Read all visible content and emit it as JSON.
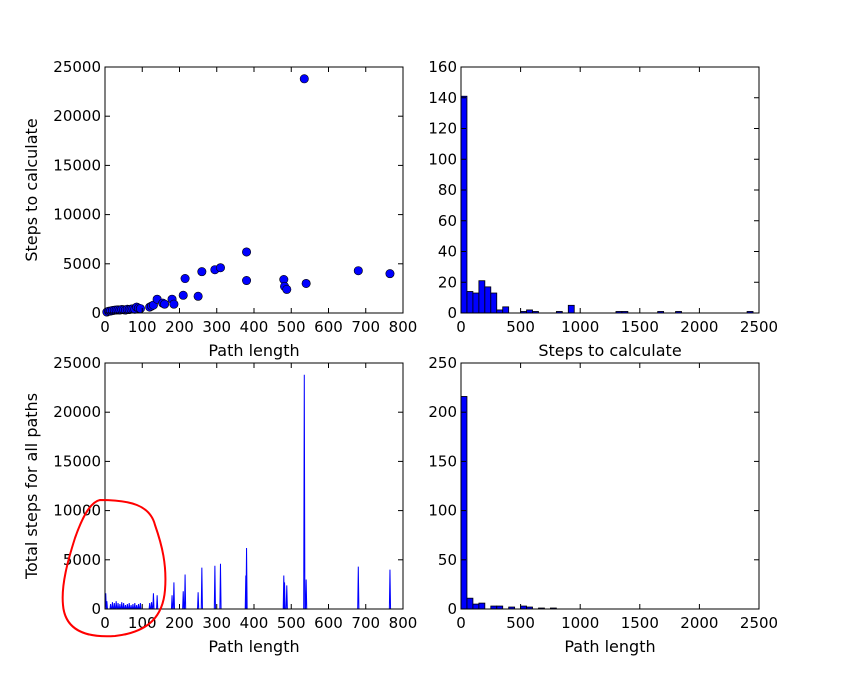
{
  "figure": {
    "background": "#ffffff",
    "mark_color": "#0000ff",
    "edge_color": "#000000",
    "annotation_color": "#ff0000"
  },
  "chart_data": [
    {
      "type": "scatter",
      "xlabel": "Path length",
      "ylabel": "Steps to calculate",
      "xlim": [
        0,
        800
      ],
      "ylim": [
        0,
        25000
      ],
      "xticks": [
        0,
        100,
        200,
        300,
        400,
        500,
        600,
        700,
        800
      ],
      "yticks": [
        0,
        5000,
        10000,
        15000,
        20000,
        25000
      ],
      "points": [
        [
          5,
          100
        ],
        [
          10,
          180
        ],
        [
          15,
          200
        ],
        [
          20,
          250
        ],
        [
          25,
          280
        ],
        [
          30,
          300
        ],
        [
          35,
          320
        ],
        [
          40,
          300
        ],
        [
          45,
          350
        ],
        [
          50,
          330
        ],
        [
          55,
          300
        ],
        [
          60,
          380
        ],
        [
          65,
          350
        ],
        [
          70,
          400
        ],
        [
          75,
          420
        ],
        [
          80,
          380
        ],
        [
          85,
          600
        ],
        [
          90,
          500
        ],
        [
          95,
          450
        ],
        [
          120,
          600
        ],
        [
          125,
          700
        ],
        [
          130,
          800
        ],
        [
          140,
          1400
        ],
        [
          155,
          1000
        ],
        [
          160,
          900
        ],
        [
          180,
          1400
        ],
        [
          185,
          900
        ],
        [
          210,
          1800
        ],
        [
          215,
          3500
        ],
        [
          250,
          1700
        ],
        [
          260,
          4200
        ],
        [
          295,
          4400
        ],
        [
          310,
          4600
        ],
        [
          380,
          6200
        ],
        [
          380,
          3300
        ],
        [
          480,
          3400
        ],
        [
          482,
          2700
        ],
        [
          488,
          2400
        ],
        [
          535,
          23800
        ],
        [
          540,
          3000
        ],
        [
          680,
          4300
        ],
        [
          765,
          4000
        ]
      ]
    },
    {
      "type": "bar",
      "xlabel": "Steps to calculate",
      "ylabel": "",
      "xlim": [
        0,
        2500
      ],
      "ylim": [
        0,
        160
      ],
      "xticks": [
        0,
        500,
        1000,
        1500,
        2000,
        2500
      ],
      "yticks": [
        0,
        20,
        40,
        60,
        80,
        100,
        120,
        140,
        160
      ],
      "bin_width": 50,
      "bins": [
        [
          0,
          141
        ],
        [
          50,
          14
        ],
        [
          100,
          13
        ],
        [
          150,
          21
        ],
        [
          200,
          17
        ],
        [
          250,
          13
        ],
        [
          300,
          2
        ],
        [
          350,
          4
        ],
        [
          500,
          1
        ],
        [
          550,
          2
        ],
        [
          600,
          1
        ],
        [
          800,
          1
        ],
        [
          900,
          5
        ],
        [
          1300,
          1
        ],
        [
          1350,
          1
        ],
        [
          1650,
          1
        ],
        [
          1800,
          1
        ],
        [
          2400,
          1
        ]
      ]
    },
    {
      "type": "line",
      "xlabel": "Path length",
      "ylabel": "Total steps for all paths",
      "xlim": [
        0,
        800
      ],
      "ylim": [
        0,
        25000
      ],
      "xticks": [
        0,
        100,
        200,
        300,
        400,
        500,
        600,
        700,
        800
      ],
      "yticks": [
        0,
        5000,
        10000,
        15000,
        20000,
        25000
      ],
      "spikes": [
        [
          2,
          1600
        ],
        [
          5,
          800
        ],
        [
          15,
          500
        ],
        [
          20,
          700
        ],
        [
          25,
          600
        ],
        [
          30,
          800
        ],
        [
          35,
          600
        ],
        [
          40,
          500
        ],
        [
          45,
          700
        ],
        [
          50,
          600
        ],
        [
          55,
          400
        ],
        [
          60,
          500
        ],
        [
          65,
          600
        ],
        [
          70,
          400
        ],
        [
          75,
          500
        ],
        [
          80,
          600
        ],
        [
          85,
          400
        ],
        [
          90,
          500
        ],
        [
          95,
          600
        ],
        [
          120,
          600
        ],
        [
          125,
          700
        ],
        [
          130,
          1600
        ],
        [
          140,
          1400
        ],
        [
          180,
          1400
        ],
        [
          185,
          2700
        ],
        [
          210,
          1800
        ],
        [
          215,
          3500
        ],
        [
          250,
          1700
        ],
        [
          260,
          4200
        ],
        [
          295,
          4400
        ],
        [
          310,
          4600
        ],
        [
          380,
          6200
        ],
        [
          378,
          3400
        ],
        [
          480,
          3400
        ],
        [
          482,
          2700
        ],
        [
          488,
          2400
        ],
        [
          535,
          23800
        ],
        [
          540,
          3000
        ],
        [
          680,
          4300
        ],
        [
          765,
          4000
        ]
      ]
    },
    {
      "type": "bar",
      "xlabel": "Path length",
      "ylabel": "",
      "xlim": [
        0,
        2500
      ],
      "ylim": [
        0,
        250
      ],
      "xticks": [
        0,
        500,
        1000,
        1500,
        2000,
        2500
      ],
      "yticks": [
        0,
        50,
        100,
        150,
        200,
        250
      ],
      "bin_width": 50,
      "bins": [
        [
          0,
          216
        ],
        [
          50,
          11
        ],
        [
          100,
          5
        ],
        [
          150,
          6
        ],
        [
          250,
          3
        ],
        [
          300,
          3
        ],
        [
          400,
          2
        ],
        [
          500,
          3
        ],
        [
          550,
          2
        ],
        [
          650,
          1
        ],
        [
          750,
          1
        ]
      ]
    }
  ]
}
